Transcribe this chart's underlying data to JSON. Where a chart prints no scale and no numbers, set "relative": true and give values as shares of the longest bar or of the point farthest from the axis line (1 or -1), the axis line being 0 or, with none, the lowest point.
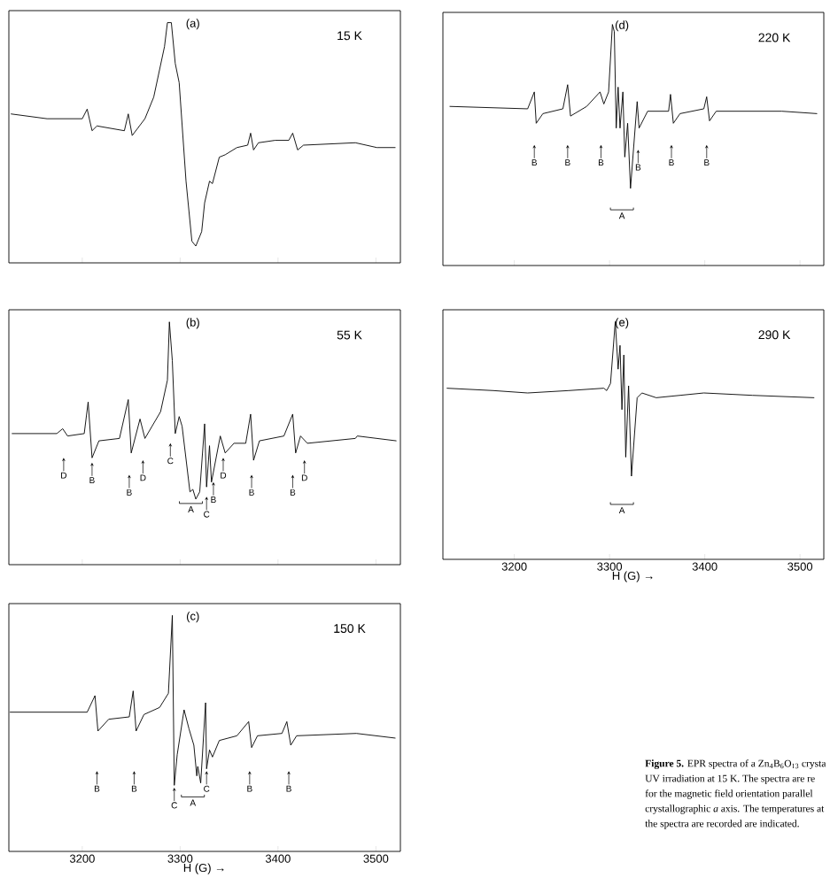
{
  "chart_data": [
    {
      "type": "line",
      "relative": true,
      "title": "(a)",
      "subtitle": "15 K",
      "color": "#000000",
      "xlim": [
        3125,
        3525
      ],
      "xticks": [
        3200,
        3300,
        3400,
        3500
      ],
      "tick_labels": false,
      "x": [
        3127,
        3164,
        3200,
        3205,
        3210,
        3215,
        3243,
        3247,
        3251,
        3264,
        3273,
        3284,
        3287,
        3291,
        3295,
        3299,
        3306,
        3312,
        3316,
        3322,
        3325,
        3330,
        3333,
        3340,
        3346,
        3358,
        3369,
        3372,
        3375,
        3380,
        3397,
        3411,
        3415,
        3420,
        3426,
        3479,
        3501,
        3520
      ],
      "values": [
        0.62,
        0.6,
        0.6,
        0.64,
        0.55,
        0.57,
        0.55,
        0.62,
        0.53,
        0.6,
        0.69,
        0.9,
        1,
        1,
        0.83,
        0.75,
        0.34,
        0.09,
        0.07,
        0.13,
        0.25,
        0.34,
        0.33,
        0.44,
        0.45,
        0.48,
        0.49,
        0.54,
        0.47,
        0.5,
        0.51,
        0.51,
        0.54,
        0.47,
        0.49,
        0.5,
        0.48,
        0.48
      ]
    },
    {
      "type": "line",
      "relative": true,
      "title": "(b)",
      "subtitle": "55 K",
      "color": "#000000",
      "xlim": [
        3125,
        3525
      ],
      "xticks": [
        3200,
        3300,
        3400,
        3500
      ],
      "tick_labels": false,
      "x": [
        3128,
        3174,
        3180,
        3185,
        3202,
        3206,
        3210,
        3217,
        3238,
        3247,
        3250,
        3259,
        3264,
        3280,
        3287,
        3289,
        3292,
        3295,
        3299,
        3302,
        3310,
        3313,
        3316,
        3320,
        3325,
        3327,
        3330,
        3332,
        3341,
        3346,
        3355,
        3367,
        3372,
        3375,
        3381,
        3406,
        3415,
        3418,
        3423,
        3430,
        3479,
        3481,
        3521
      ],
      "values": [
        0.54,
        0.54,
        0.56,
        0.53,
        0.54,
        0.67,
        0.44,
        0.51,
        0.52,
        0.68,
        0.46,
        0.6,
        0.52,
        0.63,
        0.76,
        1,
        0.84,
        0.54,
        0.61,
        0.57,
        0.3,
        0.31,
        0.27,
        0.3,
        0.58,
        0.32,
        0.49,
        0.34,
        0.53,
        0.46,
        0.5,
        0.5,
        0.62,
        0.43,
        0.51,
        0.53,
        0.62,
        0.46,
        0.53,
        0.5,
        0.52,
        0.53,
        0.51
      ],
      "annotations": [
        {
          "text": "D",
          "x": 3181,
          "y": 0.44
        },
        {
          "text": "B",
          "x": 3210,
          "y": 0.42
        },
        {
          "text": "B",
          "x": 3248,
          "y": 0.37
        },
        {
          "text": "D",
          "x": 3262,
          "y": 0.43
        },
        {
          "text": "C",
          "x": 3290,
          "y": 0.5
        },
        "A",
        {
          "text": "C",
          "x": 3327,
          "y": 0.28
        },
        {
          "text": "B",
          "x": 3334,
          "y": 0.34
        },
        {
          "text": "D",
          "x": 3344,
          "y": 0.44
        },
        {
          "text": "B",
          "x": 3373,
          "y": 0.37
        },
        {
          "text": "B",
          "x": 3415,
          "y": 0.37
        },
        {
          "text": "D",
          "x": 3427,
          "y": 0.43
        }
      ]
    },
    {
      "type": "line",
      "relative": true,
      "title": "(c)",
      "subtitle": "150 K",
      "xlabel": "H (G) →",
      "color": "#000000",
      "xlim": [
        3125,
        3525
      ],
      "xticks": [
        3200,
        3300,
        3400,
        3500
      ],
      "tick_labels": "x",
      "x": [
        3126,
        3144,
        3205,
        3213,
        3216,
        3227,
        3248,
        3252,
        3255,
        3263,
        3279,
        3288,
        3292,
        3294,
        3297,
        3304,
        3309,
        3314,
        3317,
        3318,
        3321,
        3326,
        3327,
        3330,
        3333,
        3340,
        3358,
        3370,
        3373,
        3379,
        3404,
        3409,
        3413,
        3419,
        3480,
        3520
      ],
      "values": [
        0.59,
        0.59,
        0.59,
        0.66,
        0.51,
        0.56,
        0.57,
        0.68,
        0.51,
        0.58,
        0.61,
        0.67,
        1,
        0.28,
        0.41,
        0.6,
        0.52,
        0.45,
        0.32,
        0.36,
        0.29,
        0.63,
        0.35,
        0.43,
        0.4,
        0.47,
        0.49,
        0.55,
        0.44,
        0.49,
        0.5,
        0.55,
        0.45,
        0.49,
        0.5,
        0.48
      ],
      "annotations": [
        {
          "text": "B",
          "x": 3215,
          "y": 0.34
        },
        {
          "text": "B",
          "x": 3253,
          "y": 0.34
        },
        {
          "text": "C",
          "x": 3294,
          "y": 0.27
        },
        "A",
        {
          "text": "C",
          "x": 3327,
          "y": 0.34
        },
        {
          "text": "B",
          "x": 3371,
          "y": 0.34
        },
        {
          "text": "B",
          "x": 3411,
          "y": 0.34
        }
      ]
    },
    {
      "type": "line",
      "relative": true,
      "title": "(d)",
      "subtitle": "220 K",
      "color": "#000000",
      "xlim": [
        3125,
        3525
      ],
      "xticks": [
        3200,
        3300,
        3400,
        3500
      ],
      "tick_labels": false,
      "x": [
        3132,
        3214,
        3221,
        3223,
        3230,
        3251,
        3256,
        3259,
        3276,
        3290,
        3294,
        3299,
        3303,
        3305,
        3307,
        3309,
        3311,
        3314,
        3316,
        3319,
        3322,
        3329,
        3331,
        3340,
        3362,
        3364,
        3367,
        3374,
        3399,
        3402,
        3405,
        3412,
        3481,
        3518
      ],
      "values": [
        0.66,
        0.65,
        0.72,
        0.59,
        0.63,
        0.65,
        0.75,
        0.62,
        0.66,
        0.72,
        0.67,
        0.72,
        1,
        0.97,
        0.57,
        0.74,
        0.57,
        0.72,
        0.45,
        0.59,
        0.32,
        0.68,
        0.57,
        0.64,
        0.64,
        0.71,
        0.59,
        0.63,
        0.65,
        0.7,
        0.6,
        0.64,
        0.64,
        0.63
      ],
      "annotations": [
        {
          "text": "B",
          "x": 3221,
          "y": 0.5
        },
        {
          "text": "B",
          "x": 3256,
          "y": 0.5
        },
        {
          "text": "B",
          "x": 3291,
          "y": 0.5
        },
        {
          "text": "B",
          "x": 3330,
          "y": 0.48
        },
        {
          "text": "B",
          "x": 3365,
          "y": 0.5
        },
        {
          "text": "B",
          "x": 3402,
          "y": 0.5
        },
        "A"
      ]
    },
    {
      "type": "line",
      "relative": true,
      "title": "(e)",
      "subtitle": "290 K",
      "xlabel": "H (G) →",
      "color": "#000000",
      "xlim": [
        3125,
        3525
      ],
      "xticks": [
        3200,
        3300,
        3400,
        3500
      ],
      "tick_labels": "x",
      "x": [
        3129,
        3178,
        3214,
        3257,
        3294,
        3297,
        3301,
        3306,
        3309,
        3311,
        3313,
        3315,
        3317,
        3320,
        3323,
        3329,
        3334,
        3349,
        3399,
        3450,
        3515
      ],
      "values": [
        0.72,
        0.71,
        0.7,
        0.71,
        0.72,
        0.71,
        0.74,
        1,
        0.8,
        0.9,
        0.63,
        0.86,
        0.43,
        0.73,
        0.35,
        0.68,
        0.7,
        0.68,
        0.7,
        0.69,
        0.68
      ],
      "annotations": [
        "A"
      ]
    },
    {
      "type": "other",
      "annotations": [
        "**Figure 5.** EPR spectra of a Zn$_{4}$B$_{6}$O$_{13}$ crysta",
        "UV irradiation at 15 K. The spectra are re",
        "for the magnetic field orientation parallel",
        "crystallographic *a* axis. The temperatures at",
        "the spectra are recorded are indicated."
      ]
    }
  ]
}
